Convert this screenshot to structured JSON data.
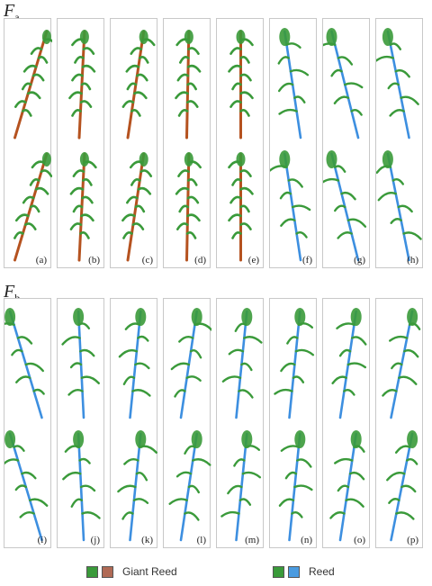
{
  "groups": [
    {
      "label_main": "F",
      "label_sub": "a",
      "panels": [
        {
          "tag": "(a)",
          "scheme": "giant",
          "lean": 0.3
        },
        {
          "tag": "(b)",
          "scheme": "giant",
          "lean": 0.05
        },
        {
          "tag": "(c)",
          "scheme": "giant",
          "lean": 0.15
        },
        {
          "tag": "(d)",
          "scheme": "giant",
          "lean": 0.02
        },
        {
          "tag": "(e)",
          "scheme": "giant",
          "lean": 0.0
        },
        {
          "tag": "(f)",
          "scheme": "reed",
          "lean": -0.15
        },
        {
          "tag": "(g)",
          "scheme": "reed",
          "lean": -0.25
        },
        {
          "tag": "(h)",
          "scheme": "reed",
          "lean": -0.2
        }
      ]
    },
    {
      "label_main": "F",
      "label_sub": "b",
      "panels": [
        {
          "tag": "(i)",
          "scheme": "reed",
          "lean": -0.3
        },
        {
          "tag": "(j)",
          "scheme": "reed",
          "lean": -0.05
        },
        {
          "tag": "(k)",
          "scheme": "reed",
          "lean": 0.1
        },
        {
          "tag": "(l)",
          "scheme": "reed",
          "lean": 0.15
        },
        {
          "tag": "(m)",
          "scheme": "reed",
          "lean": 0.1
        },
        {
          "tag": "(n)",
          "scheme": "reed",
          "lean": 0.1
        },
        {
          "tag": "(o)",
          "scheme": "reed",
          "lean": 0.15
        },
        {
          "tag": "(p)",
          "scheme": "reed",
          "lean": 0.2
        }
      ]
    }
  ],
  "legend": [
    {
      "label": "Giant Reed",
      "colors": [
        "#3a9a3a",
        "#b06a55"
      ]
    },
    {
      "label": "Reed",
      "colors": [
        "#3a9a3a",
        "#4a9be0"
      ]
    }
  ],
  "colors": {
    "leaf": "#3a9a3a",
    "giant_stem": "#b5521f",
    "reed_stem": "#3d8fe0",
    "panel_border": "#c8c8c8"
  }
}
